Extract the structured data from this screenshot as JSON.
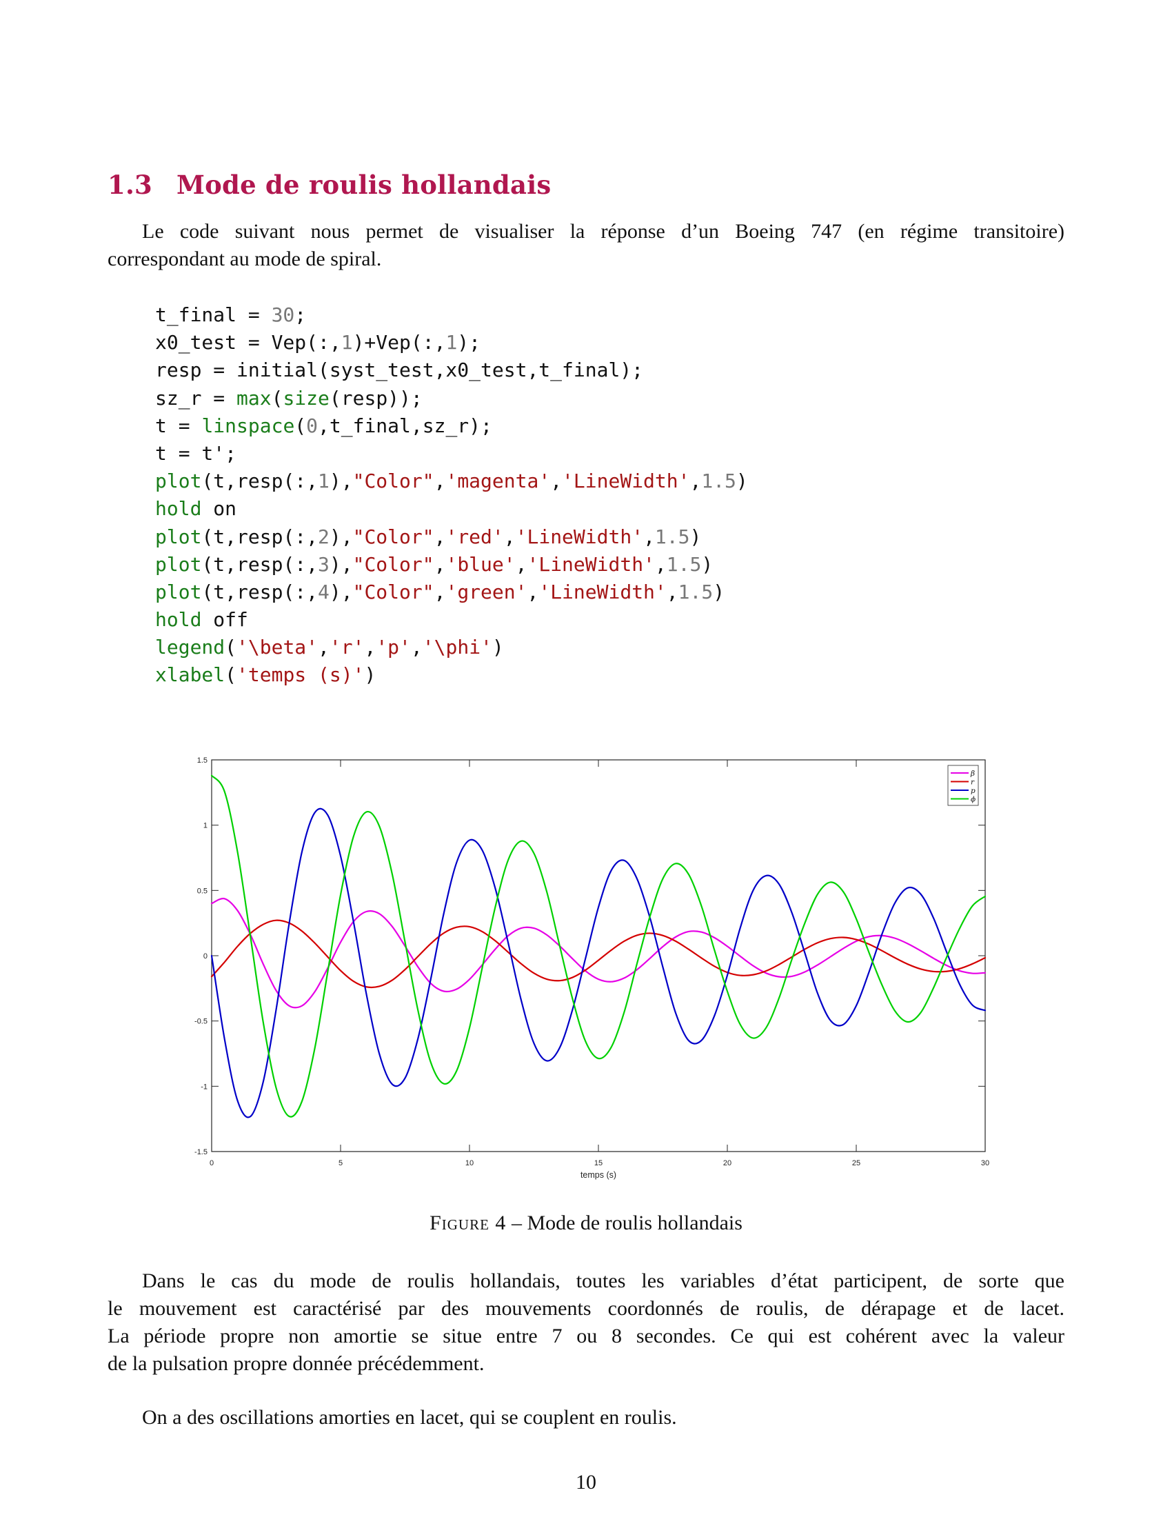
{
  "section": {
    "number": "1.3",
    "title": "Mode de roulis hollandais"
  },
  "intro": {
    "line1": "Le code suivant nous permet de visualiser la réponse d’un Boeing 747 (en régime transitoire)",
    "line2": "correspondant au mode de spiral."
  },
  "code_lines": [
    [
      {
        "t": "t_final = ",
        "c": "p"
      },
      {
        "t": "30",
        "c": "n"
      },
      {
        "t": ";",
        "c": "p"
      }
    ],
    [
      {
        "t": "x0_test = Vep(:,",
        "c": "p"
      },
      {
        "t": "1",
        "c": "n"
      },
      {
        "t": ")+Vep(:,",
        "c": "p"
      },
      {
        "t": "1",
        "c": "n"
      },
      {
        "t": ");",
        "c": "p"
      }
    ],
    [
      {
        "t": "resp = initial(syst_test,x0_test,t_final);",
        "c": "p"
      }
    ],
    [
      {
        "t": "sz_r = ",
        "c": "p"
      },
      {
        "t": "max",
        "c": "k"
      },
      {
        "t": "(",
        "c": "p"
      },
      {
        "t": "size",
        "c": "k"
      },
      {
        "t": "(resp));",
        "c": "p"
      }
    ],
    [
      {
        "t": "t = ",
        "c": "p"
      },
      {
        "t": "linspace",
        "c": "k"
      },
      {
        "t": "(",
        "c": "p"
      },
      {
        "t": "0",
        "c": "n"
      },
      {
        "t": ",t_final,sz_r);",
        "c": "p"
      }
    ],
    [
      {
        "t": "t = t';",
        "c": "p"
      }
    ],
    [
      {
        "t": "plot",
        "c": "k"
      },
      {
        "t": "(t,resp(:,",
        "c": "p"
      },
      {
        "t": "1",
        "c": "n"
      },
      {
        "t": "),",
        "c": "p"
      },
      {
        "t": "\"Color\"",
        "c": "s"
      },
      {
        "t": ",",
        "c": "p"
      },
      {
        "t": "'magenta'",
        "c": "s"
      },
      {
        "t": ",",
        "c": "p"
      },
      {
        "t": "'LineWidth'",
        "c": "s"
      },
      {
        "t": ",",
        "c": "p"
      },
      {
        "t": "1.5",
        "c": "n"
      },
      {
        "t": ")",
        "c": "p"
      }
    ],
    [
      {
        "t": "hold",
        "c": "k"
      },
      {
        "t": " on",
        "c": "p"
      }
    ],
    [
      {
        "t": "plot",
        "c": "k"
      },
      {
        "t": "(t,resp(:,",
        "c": "p"
      },
      {
        "t": "2",
        "c": "n"
      },
      {
        "t": "),",
        "c": "p"
      },
      {
        "t": "\"Color\"",
        "c": "s"
      },
      {
        "t": ",",
        "c": "p"
      },
      {
        "t": "'red'",
        "c": "s"
      },
      {
        "t": ",",
        "c": "p"
      },
      {
        "t": "'LineWidth'",
        "c": "s"
      },
      {
        "t": ",",
        "c": "p"
      },
      {
        "t": "1.5",
        "c": "n"
      },
      {
        "t": ")",
        "c": "p"
      }
    ],
    [
      {
        "t": "plot",
        "c": "k"
      },
      {
        "t": "(t,resp(:,",
        "c": "p"
      },
      {
        "t": "3",
        "c": "n"
      },
      {
        "t": "),",
        "c": "p"
      },
      {
        "t": "\"Color\"",
        "c": "s"
      },
      {
        "t": ",",
        "c": "p"
      },
      {
        "t": "'blue'",
        "c": "s"
      },
      {
        "t": ",",
        "c": "p"
      },
      {
        "t": "'LineWidth'",
        "c": "s"
      },
      {
        "t": ",",
        "c": "p"
      },
      {
        "t": "1.5",
        "c": "n"
      },
      {
        "t": ")",
        "c": "p"
      }
    ],
    [
      {
        "t": "plot",
        "c": "k"
      },
      {
        "t": "(t,resp(:,",
        "c": "p"
      },
      {
        "t": "4",
        "c": "n"
      },
      {
        "t": "),",
        "c": "p"
      },
      {
        "t": "\"Color\"",
        "c": "s"
      },
      {
        "t": ",",
        "c": "p"
      },
      {
        "t": "'green'",
        "c": "s"
      },
      {
        "t": ",",
        "c": "p"
      },
      {
        "t": "'LineWidth'",
        "c": "s"
      },
      {
        "t": ",",
        "c": "p"
      },
      {
        "t": "1.5",
        "c": "n"
      },
      {
        "t": ")",
        "c": "p"
      }
    ],
    [
      {
        "t": "hold",
        "c": "k"
      },
      {
        "t": " off",
        "c": "p"
      }
    ],
    [
      {
        "t": "legend",
        "c": "k"
      },
      {
        "t": "(",
        "c": "p"
      },
      {
        "t": "'\\beta'",
        "c": "s"
      },
      {
        "t": ",",
        "c": "p"
      },
      {
        "t": "'r'",
        "c": "s"
      },
      {
        "t": ",",
        "c": "p"
      },
      {
        "t": "'p'",
        "c": "s"
      },
      {
        "t": ",",
        "c": "p"
      },
      {
        "t": "'\\phi'",
        "c": "s"
      },
      {
        "t": ")",
        "c": "p"
      }
    ],
    [
      {
        "t": "xlabel",
        "c": "k"
      },
      {
        "t": "(",
        "c": "p"
      },
      {
        "t": "'temps (s)'",
        "c": "s"
      },
      {
        "t": ")",
        "c": "p"
      }
    ]
  ],
  "code_colors": {
    "keyword": "#1a7d1a",
    "string": "#a31515",
    "number": "#777777",
    "plain": "#111111"
  },
  "chart_data": {
    "type": "line",
    "title": "",
    "xlabel": "temps (s)",
    "ylabel": "",
    "xlim": [
      0,
      30
    ],
    "ylim": [
      -1.5,
      1.5
    ],
    "xticks": [
      "0",
      "5",
      "10",
      "15",
      "20",
      "25",
      "30"
    ],
    "yticks": [
      "1.5",
      "1",
      "0.5",
      "0",
      "-0.5",
      "-1",
      "-1.5"
    ],
    "grid": false,
    "legend_position": "top-right",
    "x": [
      0,
      0.5,
      1,
      1.5,
      2,
      2.5,
      3,
      3.5,
      4,
      4.5,
      5,
      5.5,
      6,
      6.5,
      7,
      7.5,
      8,
      8.5,
      9,
      9.5,
      10,
      10.5,
      11,
      11.5,
      12,
      12.5,
      13,
      13.5,
      14,
      14.5,
      15,
      15.5,
      16,
      16.5,
      17,
      17.5,
      18,
      18.5,
      19,
      19.5,
      20,
      20.5,
      21,
      21.5,
      22,
      22.5,
      23,
      23.5,
      24,
      24.5,
      25,
      25.5,
      26,
      26.5,
      27,
      27.5,
      28,
      28.5,
      29,
      29.5,
      30
    ],
    "series": [
      {
        "name": "β",
        "color": "#e600e6",
        "values": [
          0.4,
          0.437,
          0.347,
          0.164,
          -0.064,
          -0.266,
          -0.383,
          -0.384,
          -0.276,
          -0.096,
          0.103,
          0.261,
          0.338,
          0.322,
          0.224,
          0.074,
          -0.085,
          -0.212,
          -0.272,
          -0.256,
          -0.181,
          -0.069,
          0.05,
          0.153,
          0.211,
          0.211,
          0.159,
          0.074,
          -0.024,
          -0.117,
          -0.18,
          -0.199,
          -0.171,
          -0.106,
          -0.02,
          0.07,
          0.144,
          0.185,
          0.181,
          0.138,
          0.072,
          -0.004,
          -0.077,
          -0.133,
          -0.161,
          -0.158,
          -0.125,
          -0.071,
          -0.008,
          0.056,
          0.111,
          0.146,
          0.154,
          0.134,
          0.092,
          0.038,
          -0.02,
          -0.074,
          -0.115,
          -0.135,
          -0.131
        ]
      },
      {
        "name": "r",
        "color": "#d40000",
        "values": [
          -0.16,
          -0.049,
          0.071,
          0.171,
          0.24,
          0.271,
          0.251,
          0.189,
          0.097,
          -0.009,
          -0.114,
          -0.196,
          -0.239,
          -0.235,
          -0.188,
          -0.106,
          -0.006,
          0.093,
          0.173,
          0.218,
          0.222,
          0.184,
          0.114,
          0.027,
          -0.061,
          -0.134,
          -0.18,
          -0.191,
          -0.166,
          -0.11,
          -0.035,
          0.043,
          0.111,
          0.157,
          0.172,
          0.155,
          0.111,
          0.049,
          -0.018,
          -0.081,
          -0.128,
          -0.151,
          -0.146,
          -0.117,
          -0.068,
          -0.01,
          0.049,
          0.099,
          0.131,
          0.14,
          0.124,
          0.088,
          0.038,
          -0.016,
          -0.065,
          -0.102,
          -0.121,
          -0.12,
          -0.1,
          -0.063,
          -0.016
        ]
      },
      {
        "name": "p",
        "color": "#0000c8",
        "values": [
          0.0,
          -0.638,
          -1.108,
          -1.232,
          -0.966,
          -0.414,
          0.239,
          0.794,
          1.096,
          1.078,
          0.764,
          0.262,
          -0.293,
          -0.749,
          -0.984,
          -0.938,
          -0.636,
          -0.177,
          0.321,
          0.714,
          0.885,
          0.806,
          0.516,
          0.099,
          -0.337,
          -0.671,
          -0.805,
          -0.704,
          -0.41,
          -0.02,
          0.371,
          0.654,
          0.73,
          0.588,
          0.29,
          -0.088,
          -0.441,
          -0.65,
          -0.648,
          -0.46,
          -0.15,
          0.213,
          0.5,
          0.613,
          0.55,
          0.331,
          0.025,
          -0.288,
          -0.496,
          -0.527,
          -0.383,
          -0.122,
          0.166,
          0.404,
          0.52,
          0.472,
          0.287,
          0.031,
          -0.215,
          -0.377,
          -0.419
        ]
      },
      {
        "name": "ϕ",
        "color": "#00d000",
        "values": [
          1.38,
          1.257,
          0.799,
          0.152,
          -0.51,
          -1.012,
          -1.23,
          -1.116,
          -0.709,
          -0.125,
          0.466,
          0.912,
          1.101,
          0.994,
          0.627,
          0.105,
          -0.417,
          -0.818,
          -0.98,
          -0.882,
          -0.553,
          -0.087,
          0.373,
          0.733,
          0.878,
          0.784,
          0.488,
          0.074,
          -0.333,
          -0.656,
          -0.787,
          -0.7,
          -0.432,
          -0.058,
          0.302,
          0.59,
          0.706,
          0.623,
          0.378,
          0.043,
          -0.273,
          -0.527,
          -0.631,
          -0.553,
          -0.327,
          -0.03,
          0.247,
          0.471,
          0.563,
          0.489,
          0.283,
          0.021,
          -0.225,
          -0.423,
          -0.507,
          -0.436,
          -0.245,
          -0.014,
          0.205,
          0.38,
          0.455
        ]
      }
    ]
  },
  "caption": {
    "label": "Figure 4",
    "text": " – Mode de roulis hollandais"
  },
  "discussion": {
    "line1": "Dans le cas du mode de roulis hollandais, toutes les variables d’état participent, de sorte que",
    "line2": "le mouvement est caractérisé par des mouvements coordonnés de roulis, de dérapage et de lacet.",
    "line3": "La période propre non amortie se situe entre 7 ou 8 secondes. Ce qui est cohérent avec la valeur",
    "line4": "de la pulsation propre donnée précédemment."
  },
  "conclusion": "On a des oscillations amorties en lacet, qui se couplent en roulis.",
  "page_number": "10"
}
